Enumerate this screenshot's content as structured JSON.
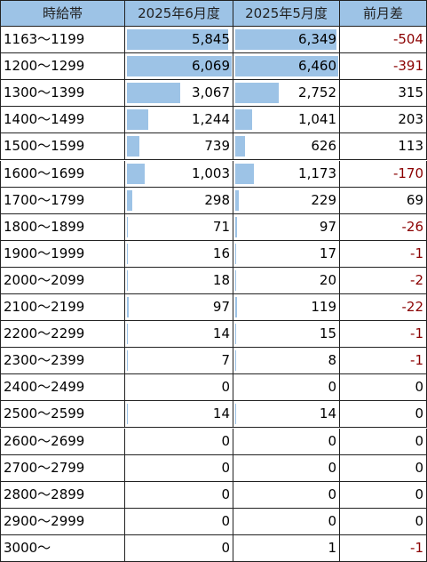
{
  "table": {
    "headers": [
      "時給帯",
      "2025年6月度",
      "2025年5月度",
      "前月差"
    ],
    "bar_color": "#9dc3e6",
    "header_color": "#9dc3e6",
    "negative_color": "#8b0000",
    "rows": [
      [
        "1163～1199",
        {
          "value": 5845,
          "label": "5,845"
        },
        {
          "value": 6349,
          "label": "6,349"
        },
        -504
      ],
      [
        "1200～1299",
        {
          "value": 6069,
          "label": "6,069"
        },
        {
          "value": 6460,
          "label": "6,460"
        },
        -391
      ],
      [
        "1300～1399",
        {
          "value": 3067,
          "label": "3,067"
        },
        {
          "value": 2752,
          "label": "2,752"
        },
        315
      ],
      [
        "1400～1499",
        {
          "value": 1244,
          "label": "1,244"
        },
        {
          "value": 1041,
          "label": "1,041"
        },
        203
      ],
      [
        "1500～1599",
        739,
        626,
        113
      ],
      [
        "1600～1699",
        {
          "value": 1003,
          "label": "1,003"
        },
        {
          "value": 1173,
          "label": "1,173"
        },
        -170
      ],
      [
        "1700～1799",
        298,
        229,
        69
      ],
      [
        "1800～1899",
        71,
        97,
        -26
      ],
      [
        "1900～1999",
        16,
        17,
        -1
      ],
      [
        "2000～2099",
        18,
        20,
        -2
      ],
      [
        "2100～2199",
        97,
        119,
        -22
      ],
      [
        "2200～2299",
        14,
        15,
        -1
      ],
      [
        "2300～2399",
        7,
        8,
        -1
      ],
      [
        "2400～2499",
        0,
        0,
        0
      ],
      [
        "2500～2599",
        14,
        14,
        0
      ],
      [
        "2600～2699",
        0,
        0,
        0
      ],
      [
        "2700～2799",
        0,
        0,
        0
      ],
      [
        "2800～2899",
        0,
        0,
        0
      ],
      [
        "2900～2999",
        0,
        0,
        0
      ],
      [
        "3000～",
        0,
        1,
        -1
      ]
    ]
  }
}
